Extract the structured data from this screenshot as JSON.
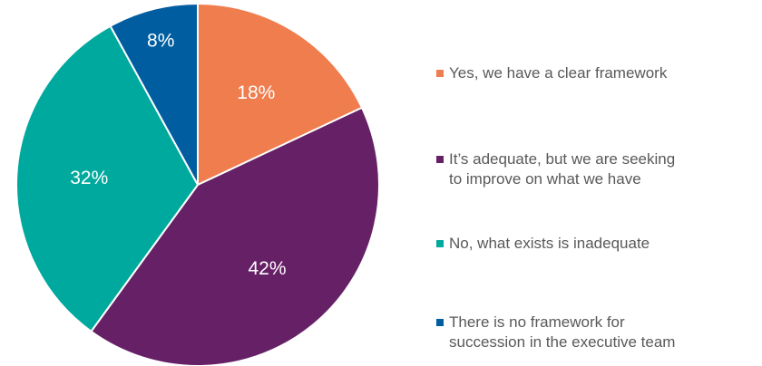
{
  "chart_data": {
    "type": "pie",
    "title": "",
    "slices": [
      {
        "label": "Yes, we have a clear framework",
        "value": 18,
        "display": "18%",
        "color": "#F07D4E"
      },
      {
        "label": "It’s adequate, but we are seeking\nto improve on what we have",
        "value": 42,
        "display": "42%",
        "color": "#662066"
      },
      {
        "label": "No, what exists is inadequate",
        "value": 32,
        "display": "32%",
        "color": "#00A99D"
      },
      {
        "label": "There is no framework for\nsuccession in the executive team",
        "value": 8,
        "display": "8%",
        "color": "#005DA0"
      }
    ],
    "legend_position": "right",
    "start_angle_deg": 0,
    "direction": "clockwise"
  }
}
